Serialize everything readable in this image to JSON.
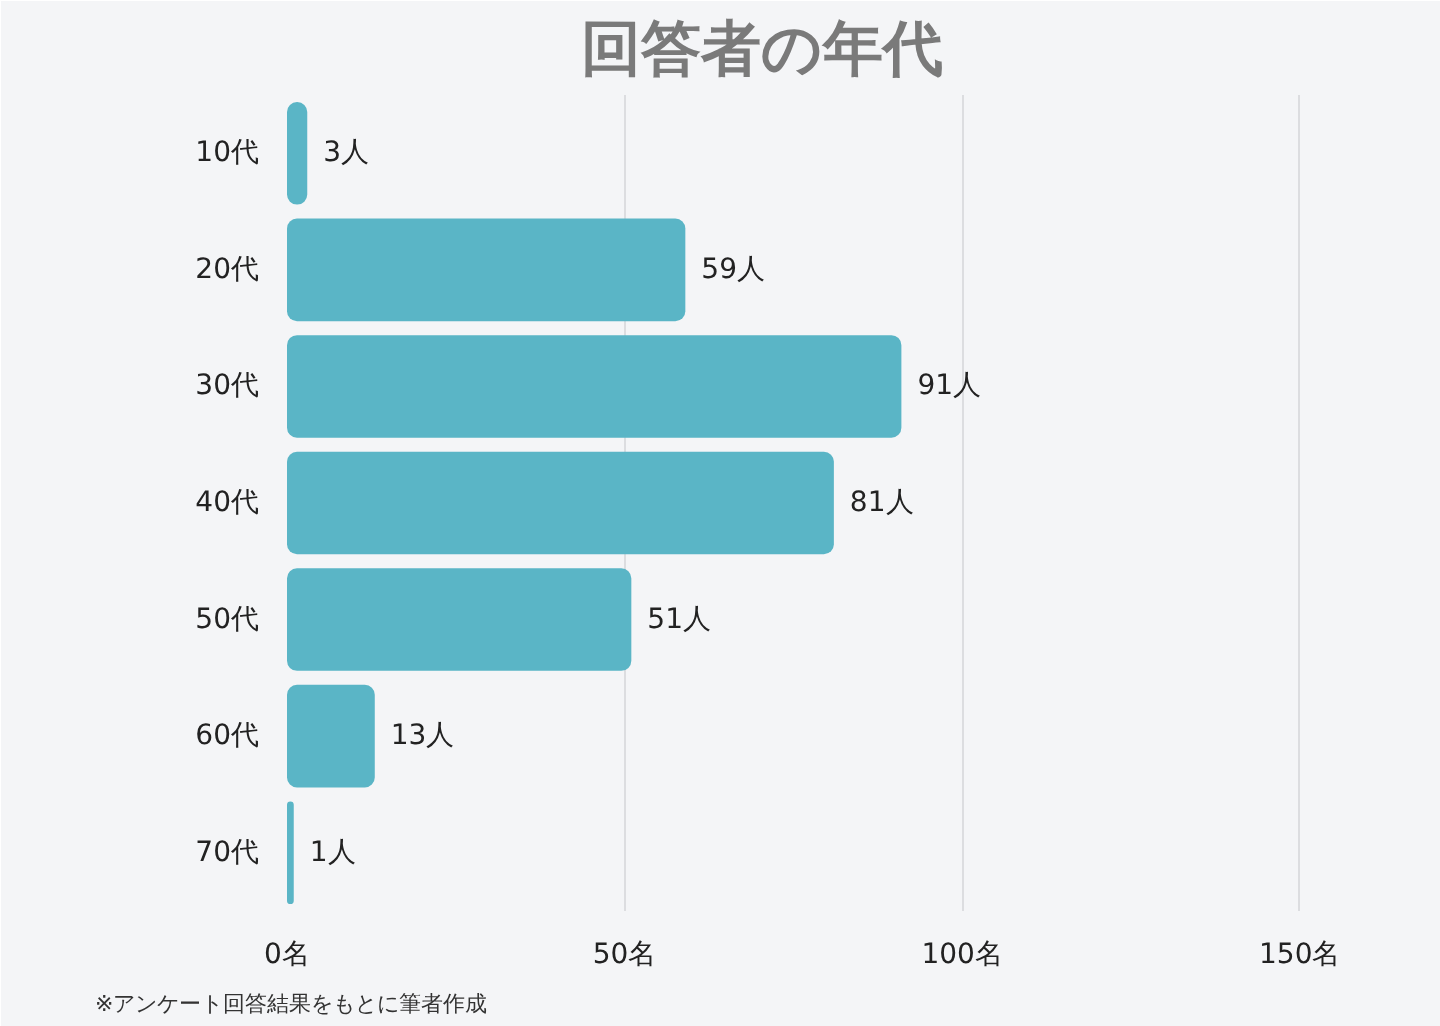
{
  "chart_data": {
    "type": "bar",
    "orientation": "horizontal",
    "title": "回答者の年代",
    "categories": [
      "10代",
      "20代",
      "30代",
      "40代",
      "50代",
      "60代",
      "70代"
    ],
    "values": [
      3,
      59,
      91,
      81,
      51,
      13,
      1
    ],
    "value_labels": [
      "3人",
      "59人",
      "91人",
      "81人",
      "51人",
      "13人",
      "1人"
    ],
    "color": "#5ab5c6",
    "xlim": [
      0,
      165
    ],
    "xticks": [
      {
        "value": 0,
        "label": "0名"
      },
      {
        "value": 50,
        "label": "50名"
      },
      {
        "value": 100,
        "label": "100名"
      },
      {
        "value": 150,
        "label": "150名"
      }
    ],
    "grid": "x",
    "annotations": [
      "※アンケート回答結果をもとに筆者作成"
    ]
  }
}
